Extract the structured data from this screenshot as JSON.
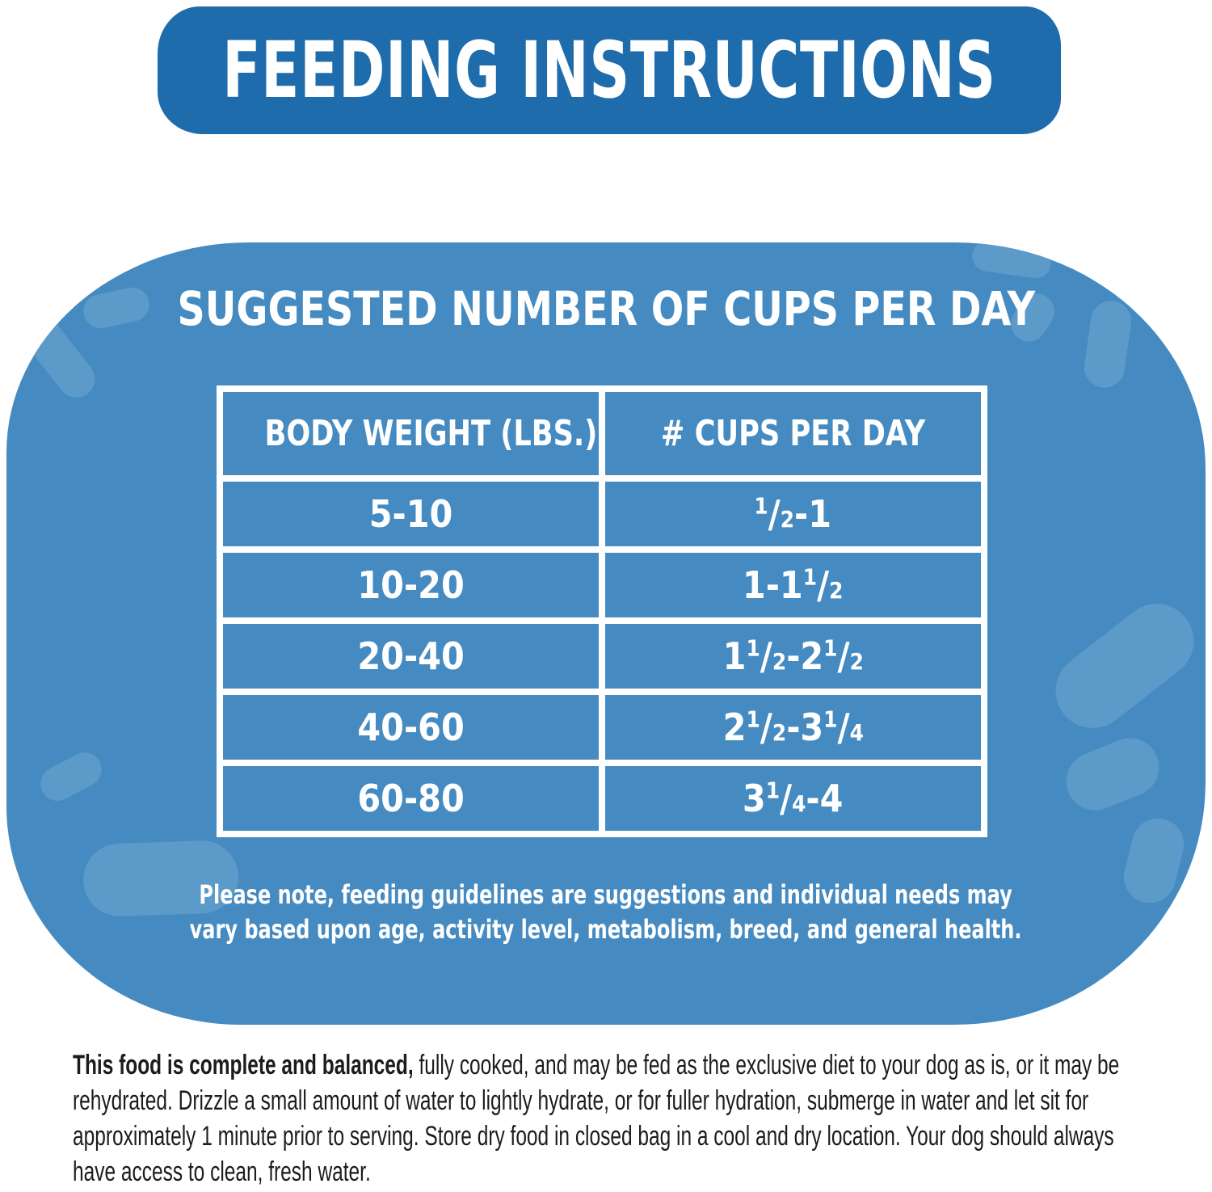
{
  "colors": {
    "banner_blue": "#1e6cac",
    "card_blue": "#458bc1",
    "kibble_blue": "#5c9aca",
    "text_white": "#ffffff",
    "footer_text": "#1c1c1c"
  },
  "header": {
    "title": "FEEDING INSTRUCTIONS"
  },
  "card": {
    "title": "SUGGESTED NUMBER OF CUPS PER DAY",
    "table": {
      "headers": [
        "BODY WEIGHT (LBS.)",
        "# CUPS PER DAY"
      ],
      "rows": [
        {
          "weight": "5-10",
          "cups": "1/2-1"
        },
        {
          "weight": "10-20",
          "cups": "1-1 1/2"
        },
        {
          "weight": "20-40",
          "cups": "1 1/2-2 1/2"
        },
        {
          "weight": "40-60",
          "cups": "2 1/2-3 1/4"
        },
        {
          "weight": "60-80",
          "cups": "3 1/4-4"
        }
      ]
    },
    "note_line1": "Please note, feeding guidelines are suggestions and individual needs may",
    "note_line2": "vary based upon age, activity level, metabolism, breed, and general health."
  },
  "footer": {
    "bold_intro": "This food is complete and balanced,",
    "text": "fully cooked, and may be fed as the exclusive diet to your dog as is, or it may be rehydrated. Drizzle a small amount of water to lightly hydrate, or for fuller hydration, submerge in water and let sit for approximately 1 minute prior to serving. Store dry food in closed bag in a cool and dry location. Your dog should always have access to clean, fresh water."
  }
}
